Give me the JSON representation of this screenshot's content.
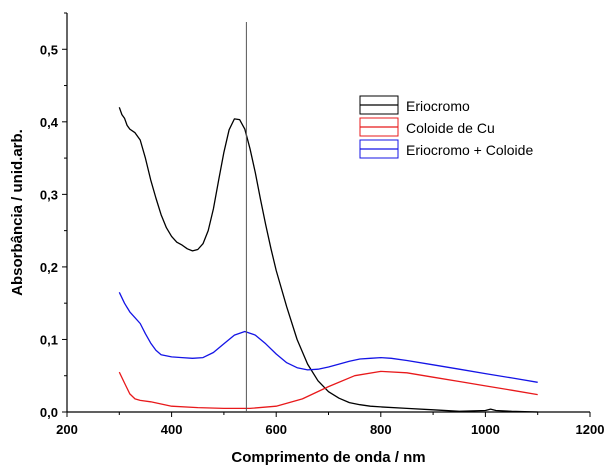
{
  "chart_data": {
    "type": "line",
    "xlabel": "Comprimento de onda / nm",
    "ylabel": "Absorbância / unid.arb.",
    "xlim": [
      200,
      1200
    ],
    "ylim": [
      0,
      0.55
    ],
    "x_ticks": [
      "200",
      "400",
      "600",
      "800",
      "1000",
      "1200"
    ],
    "y_ticks": [
      "0,0",
      "0,1",
      "0,2",
      "0,3",
      "0,4",
      "0,5"
    ],
    "grid": false,
    "legend_position": "top-right",
    "vertical_marker_x": 543,
    "series": [
      {
        "name": "Eriocromo",
        "color": "#000000",
        "x": [
          300,
          305,
          310,
          315,
          320,
          330,
          340,
          350,
          360,
          370,
          380,
          390,
          400,
          410,
          420,
          430,
          440,
          450,
          460,
          470,
          480,
          490,
          500,
          510,
          520,
          530,
          540,
          550,
          560,
          570,
          580,
          590,
          600,
          620,
          640,
          660,
          680,
          700,
          720,
          740,
          760,
          780,
          800,
          850,
          900,
          950,
          1000,
          1010,
          1020,
          1050,
          1100
        ],
        "values": [
          0.42,
          0.41,
          0.405,
          0.395,
          0.39,
          0.385,
          0.375,
          0.35,
          0.32,
          0.295,
          0.272,
          0.254,
          0.242,
          0.234,
          0.23,
          0.225,
          0.222,
          0.224,
          0.232,
          0.25,
          0.28,
          0.32,
          0.358,
          0.389,
          0.404,
          0.403,
          0.39,
          0.363,
          0.33,
          0.293,
          0.258,
          0.225,
          0.195,
          0.145,
          0.1,
          0.066,
          0.043,
          0.028,
          0.019,
          0.013,
          0.01,
          0.008,
          0.007,
          0.005,
          0.003,
          0.001,
          0.002,
          0.004,
          0.002,
          0.001,
          0.0
        ]
      },
      {
        "name": "Coloide de Cu",
        "color": "#e8191b",
        "x": [
          300,
          310,
          320,
          330,
          340,
          360,
          400,
          450,
          500,
          550,
          600,
          650,
          700,
          750,
          800,
          850,
          900,
          950,
          1000,
          1050,
          1100
        ],
        "values": [
          0.055,
          0.04,
          0.025,
          0.018,
          0.016,
          0.014,
          0.008,
          0.006,
          0.005,
          0.005,
          0.008,
          0.018,
          0.035,
          0.05,
          0.056,
          0.054,
          0.048,
          0.042,
          0.036,
          0.03,
          0.024
        ]
      },
      {
        "name": "Eriocromo + Coloide",
        "color": "#1414e6",
        "x": [
          300,
          310,
          320,
          330,
          340,
          350,
          360,
          370,
          380,
          400,
          420,
          440,
          460,
          480,
          500,
          520,
          540,
          560,
          580,
          600,
          620,
          640,
          660,
          680,
          700,
          720,
          740,
          760,
          780,
          800,
          820,
          850,
          900,
          950,
          1000,
          1050,
          1100
        ],
        "values": [
          0.165,
          0.15,
          0.138,
          0.13,
          0.122,
          0.108,
          0.095,
          0.085,
          0.079,
          0.076,
          0.075,
          0.074,
          0.075,
          0.082,
          0.094,
          0.106,
          0.111,
          0.106,
          0.094,
          0.08,
          0.068,
          0.061,
          0.058,
          0.059,
          0.062,
          0.066,
          0.07,
          0.073,
          0.074,
          0.075,
          0.074,
          0.071,
          0.065,
          0.059,
          0.053,
          0.047,
          0.041
        ]
      }
    ]
  }
}
